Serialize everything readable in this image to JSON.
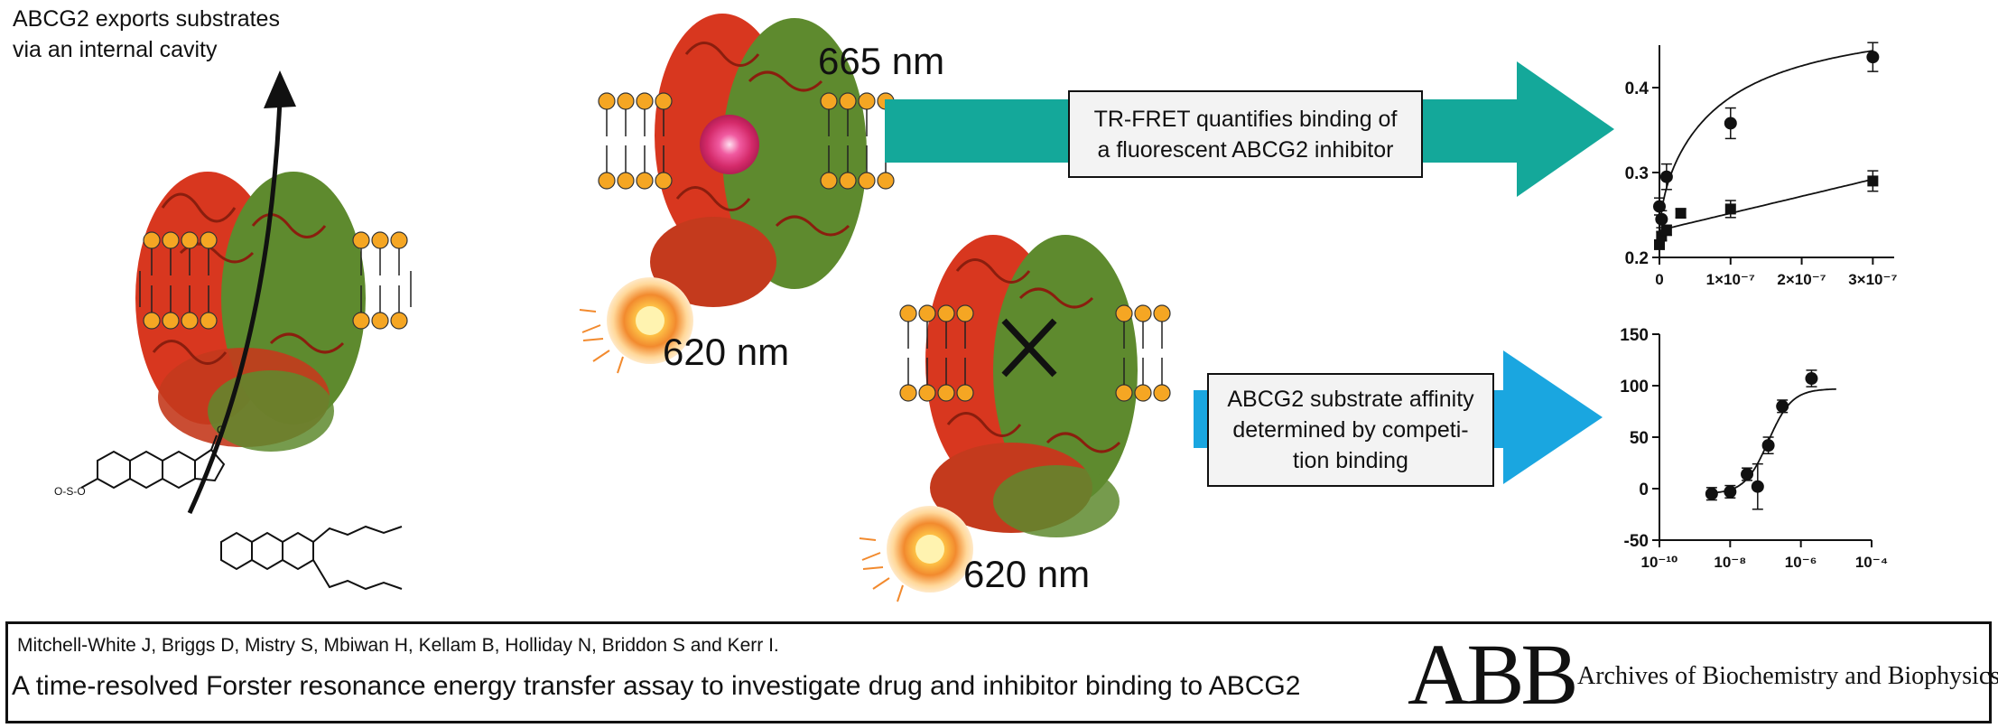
{
  "caption": {
    "line1": "ABCG2 exports substrates",
    "line2": "via an internal cavity"
  },
  "labels": {
    "emission_665": "665 nm",
    "emission_620_top": "620 nm",
    "emission_620_bottom": "620 nm"
  },
  "boxes": {
    "trfret": {
      "line1": "TR-FRET quantifies binding of",
      "line2": "a fluorescent ABCG2 inhibitor"
    },
    "substrate": {
      "line1": "ABCG2 substrate affinity",
      "line2": "determined by competi-",
      "line3": "tion binding"
    }
  },
  "colors": {
    "teal_arrow": "#14a89a",
    "blue_arrow": "#1aa6e0",
    "protein_red": "#d8371f",
    "protein_green": "#5e8a2e",
    "lipid_head": "#f5a623"
  },
  "chart_data": [
    {
      "type": "scatter",
      "title": "",
      "xlabel": "",
      "ylabel": "",
      "xlim": [
        0,
        3.3e-07
      ],
      "ylim": [
        0.2,
        0.45
      ],
      "x_ticks": [
        "0",
        "1×10⁻⁷",
        "2×10⁻⁷",
        "3×10⁻⁷"
      ],
      "y_ticks": [
        "0.2",
        "0.3",
        "0.4"
      ],
      "series": [
        {
          "marker": "circle",
          "x": [
            0,
            3e-09,
            1e-08,
            1e-07,
            3e-07
          ],
          "y": [
            0.26,
            0.245,
            0.295,
            0.358,
            0.436
          ],
          "err": [
            0.01,
            0.01,
            0.015,
            0.018,
            0.017
          ]
        },
        {
          "marker": "square",
          "x": [
            0,
            3e-09,
            1e-08,
            3e-08,
            1e-07,
            3e-07
          ],
          "y": [
            0.215,
            0.225,
            0.232,
            0.252,
            0.257,
            0.29
          ],
          "err": [
            0.005,
            0.005,
            0.006,
            0.005,
            0.01,
            0.012
          ]
        }
      ]
    },
    {
      "type": "scatter",
      "title": "",
      "xlabel": "",
      "ylabel": "",
      "x_scale": "log",
      "xlim": [
        1e-10,
        0.0001
      ],
      "ylim": [
        -50,
        150
      ],
      "x_ticks": [
        "10⁻¹⁰",
        "10⁻⁸",
        "10⁻⁶",
        "10⁻⁴"
      ],
      "y_ticks": [
        "-50",
        "0",
        "50",
        "100",
        "150"
      ],
      "series": [
        {
          "marker": "circle",
          "x": [
            3e-09,
            1e-08,
            3e-08,
            6e-08,
            1.2e-07,
            3e-07,
            2e-06
          ],
          "y": [
            -5,
            -3,
            14,
            2,
            42,
            80,
            107
          ],
          "err": [
            6,
            6,
            6,
            22,
            8,
            6,
            8
          ]
        }
      ]
    }
  ],
  "footer": {
    "authors": "Mitchell-White J, Briggs D, Mistry S, Mbiwan H, Kellam B, Holliday N, Briddon S and Kerr I.",
    "title": "A time-resolved Forster resonance energy transfer assay to investigate drug and inhibitor binding to ABCG2",
    "logo": "ABB",
    "journal": "Archives of Biochemistry and Biophysics"
  }
}
